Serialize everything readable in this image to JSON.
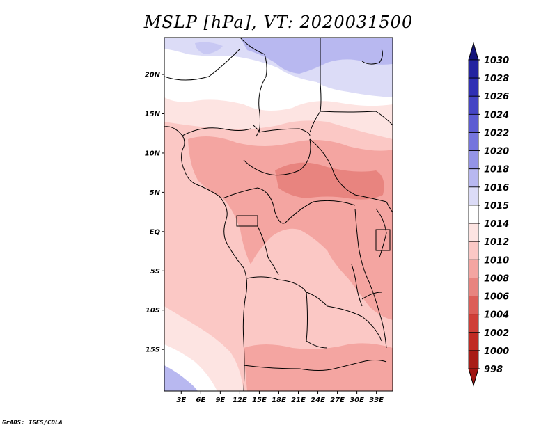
{
  "title": "MSLP [hPa], VT: 2020031500",
  "footer": "GrADS: IGES/COLA",
  "map": {
    "lat_labels": [
      {
        "label": "20N",
        "lat": 20
      },
      {
        "label": "15N",
        "lat": 15
      },
      {
        "label": "10N",
        "lat": 10
      },
      {
        "label": "5N",
        "lat": 5
      },
      {
        "label": "EQ",
        "lat": 0
      },
      {
        "label": "5S",
        "lat": -5
      },
      {
        "label": "10S",
        "lat": -10
      },
      {
        "label": "15S",
        "lat": -15
      }
    ],
    "lon_labels": [
      {
        "label": "3E",
        "lon": 3
      },
      {
        "label": "6E",
        "lon": 6
      },
      {
        "label": "9E",
        "lon": 9
      },
      {
        "label": "12E",
        "lon": 12
      },
      {
        "label": "15E",
        "lon": 15
      },
      {
        "label": "18E",
        "lon": 18
      },
      {
        "label": "21E",
        "lon": 21
      },
      {
        "label": "24E",
        "lon": 24
      },
      {
        "label": "27E",
        "lon": 27
      },
      {
        "label": "30E",
        "lon": 30
      },
      {
        "label": "33E",
        "lon": 33
      }
    ]
  },
  "colorbar": {
    "levels": [
      {
        "label": "1030",
        "color": "#1a1a8c"
      },
      {
        "label": "1028",
        "color": "#2424a0"
      },
      {
        "label": "1026",
        "color": "#3030b4"
      },
      {
        "label": "1024",
        "color": "#4545c4"
      },
      {
        "label": "1022",
        "color": "#5c5cd2"
      },
      {
        "label": "1020",
        "color": "#7575dd"
      },
      {
        "label": "1018",
        "color": "#9494e6"
      },
      {
        "label": "1016",
        "color": "#b8b8f0"
      },
      {
        "label": "1015",
        "color": "#dcdcf7"
      },
      {
        "label": "1014",
        "color": "#ffffff"
      },
      {
        "label": "1012",
        "color": "#fde4e2"
      },
      {
        "label": "1010",
        "color": "#fbc8c5"
      },
      {
        "label": "1008",
        "color": "#f4a5a1"
      },
      {
        "label": "1006",
        "color": "#e8847f"
      },
      {
        "label": "1004",
        "color": "#dc5e58"
      },
      {
        "label": "1002",
        "color": "#cf3e37"
      },
      {
        "label": "1000",
        "color": "#c02a23"
      },
      {
        "label": "998",
        "color": "#a81c16"
      }
    ],
    "top_arrow_color": "#14147a",
    "bottom_arrow_color": "#a01512"
  }
}
